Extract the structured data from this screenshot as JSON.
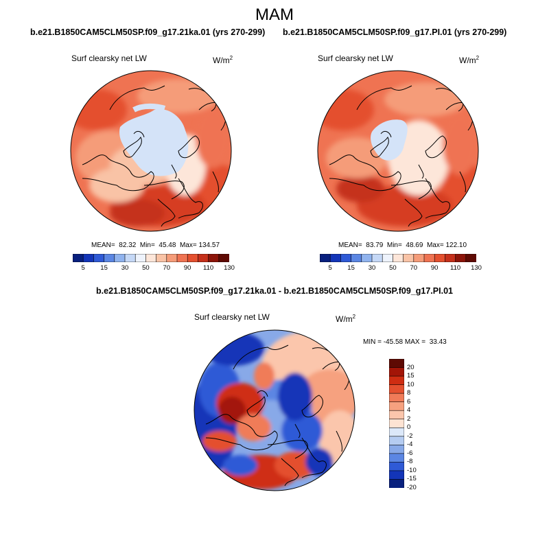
{
  "main_title": "MAM",
  "panels": [
    {
      "case": "b.e21.B1850CAM5CLM50SP.f09_g17.21ka.01 (yrs 270-299)",
      "variable": "Surf clearsky net LW",
      "units": "W/m",
      "units_exp": "2",
      "stats": "MEAN=  82.32  Min=  45.48  Max= 134.57"
    },
    {
      "case": "b.e21.B1850CAM5CLM50SP.f09_g17.PI.01 (yrs 270-299)",
      "variable": "Surf clearsky net LW",
      "units": "W/m",
      "units_exp": "2",
      "stats": "MEAN=  83.79  Min=  48.69  Max= 122.10"
    }
  ],
  "diff": {
    "title": "b.e21.B1850CAM5CLM50SP.f09_g17.21ka.01 - b.e21.B1850CAM5CLM50SP.f09_g17.PI.01",
    "variable": "Surf clearsky net LW",
    "units": "W/m",
    "units_exp": "2",
    "stats": "MIN = -45.58 MAX =  33.43"
  },
  "colorbar_abs": {
    "colors": [
      "#08207e",
      "#1335b8",
      "#2f5ad6",
      "#5b86e3",
      "#90b3ee",
      "#c5d8f6",
      "#eef3fc",
      "#fde6d9",
      "#f9c3a6",
      "#f59c79",
      "#ef7352",
      "#e4502f",
      "#c5301b",
      "#8c1409",
      "#5e0a03"
    ],
    "labels": [
      "5",
      "15",
      "30",
      "50",
      "70",
      "90",
      "110",
      "130"
    ]
  },
  "colorbar_diff": {
    "colors": [
      "#5e0a03",
      "#a31507",
      "#cf2d12",
      "#e4502f",
      "#f07b58",
      "#f6a17f",
      "#fbc6ac",
      "#fde3d3",
      "#dce8f9",
      "#b5ccf1",
      "#88a9e8",
      "#5b86e3",
      "#2f5ad6",
      "#1335b8",
      "#08207e"
    ],
    "labels": [
      "20",
      "15",
      "10",
      "8",
      "6",
      "4",
      "2",
      "0",
      "-2",
      "-4",
      "-6",
      "-8",
      "-10",
      "-15",
      "-20"
    ]
  }
}
